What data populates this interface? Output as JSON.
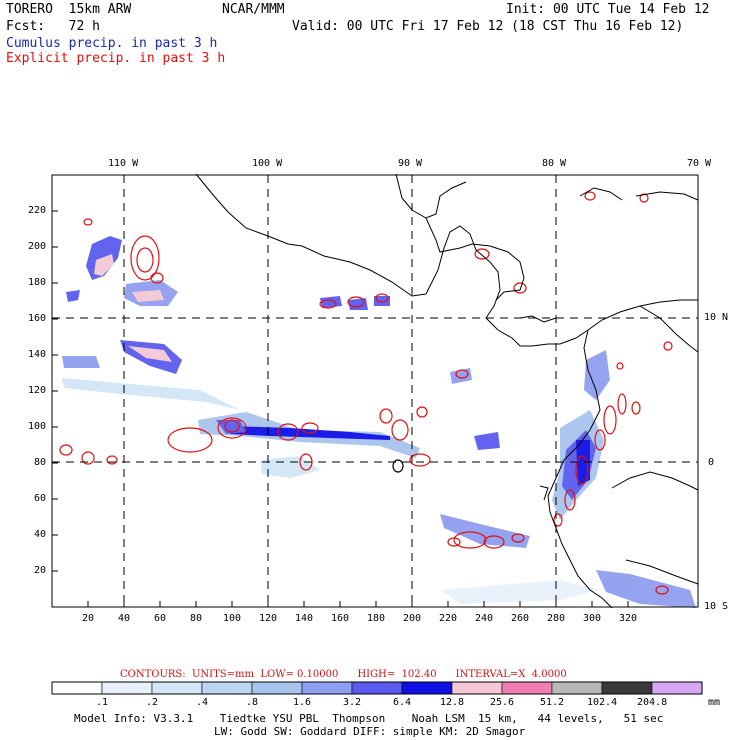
{
  "header": {
    "model": "TORERO  15km ARW",
    "center": "NCAR/MMM",
    "init": "Init: 00 UTC Tue 14 Feb 12",
    "fcst": "Fcst:   72 h",
    "valid": "Valid: 00 UTC Fri 17 Feb 12 (18 CST Thu 16 Feb 12)",
    "field1": "Cumulus precip. in past 3 h",
    "field2": "Explicit precip. in past 3 h"
  },
  "map": {
    "lon_labels": [
      "110 W",
      "100 W",
      "90 W",
      "80 W",
      "70 W"
    ],
    "lat_labels": [
      "10 N",
      "0",
      "10 S"
    ],
    "x_ticks": [
      "20",
      "40",
      "60",
      "80",
      "100",
      "120",
      "140",
      "160",
      "180",
      "200",
      "220",
      "240",
      "260",
      "280",
      "300",
      "320"
    ],
    "y_ticks": [
      "20",
      "40",
      "60",
      "80",
      "100",
      "120",
      "140",
      "160",
      "180",
      "200",
      "220"
    ]
  },
  "legend": {
    "contours_text": "CONTOURS:  UNITS=mm  LOW= 0.10000      HIGH=  102.40      INTERVAL=X  4.0000",
    "labels": [
      ".1",
      ".2",
      ".4",
      ".8",
      "1.6",
      "3.2",
      "6.4",
      "12.8",
      "25.6",
      "51.2",
      "102.4",
      "204.8"
    ],
    "unit": "mm",
    "colors": [
      "#ffffff",
      "#e8f1fb",
      "#d2e6f7",
      "#bcd6f2",
      "#a8c4ee",
      "#8f9ef0",
      "#5a5cf0",
      "#1010e6",
      "#f4c8d4",
      "#ef7fb0",
      "#b8b8b8",
      "#3a3a3a",
      "#d6a6f2"
    ]
  },
  "footer": {
    "line1": "Model Info: V3.3.1    Tiedtke YSU PBL  Thompson    Noah LSM  15 km,   44 levels,   51 sec",
    "line2": "LW: Godd SW: Goddard DIFF: simple KM: 2D Smagor"
  }
}
